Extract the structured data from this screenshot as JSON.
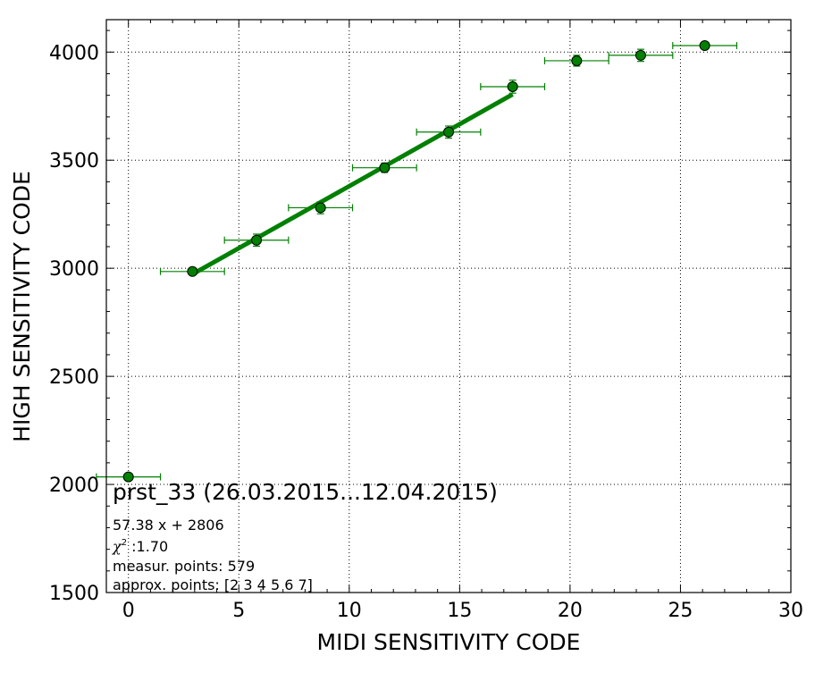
{
  "chart_data": {
    "type": "scatter",
    "xlabel": "MIDI SENSITIVITY CODE",
    "ylabel": "HIGH SENSITIVITY CODE",
    "xlim": [
      -1,
      30
    ],
    "ylim": [
      1500,
      4150
    ],
    "xticks": [
      0,
      5,
      10,
      15,
      20,
      25,
      30
    ],
    "yticks": [
      1500,
      2000,
      2500,
      3000,
      3500,
      4000
    ],
    "grid": true,
    "color": "#008000",
    "points": [
      {
        "x": 0.0,
        "y": 2035,
        "xerr": 1.45,
        "yerr": 0
      },
      {
        "x": 2.9,
        "y": 2985,
        "xerr": 1.45,
        "yerr": 12
      },
      {
        "x": 5.8,
        "y": 3130,
        "xerr": 1.45,
        "yerr": 28
      },
      {
        "x": 8.7,
        "y": 3280,
        "xerr": 1.45,
        "yerr": 28
      },
      {
        "x": 11.6,
        "y": 3465,
        "xerr": 1.45,
        "yerr": 22
      },
      {
        "x": 14.5,
        "y": 3630,
        "xerr": 1.45,
        "yerr": 28
      },
      {
        "x": 17.4,
        "y": 3840,
        "xerr": 1.45,
        "yerr": 30
      },
      {
        "x": 20.3,
        "y": 3960,
        "xerr": 1.45,
        "yerr": 25
      },
      {
        "x": 23.2,
        "y": 3985,
        "xerr": 1.45,
        "yerr": 28
      },
      {
        "x": 26.1,
        "y": 4030,
        "xerr": 1.45,
        "yerr": 12
      }
    ],
    "fit": {
      "slope": 57.38,
      "intercept": 2806,
      "x_range": [
        2.9,
        17.4
      ]
    },
    "annotation": {
      "title": "prst_33 (26.03.2015...12.04.2015)",
      "equation": "57.38 x + 2806",
      "chi_symbol": "χ",
      "chi_exp": "2",
      "chi_value": " :1.70",
      "measur_points": "measur. points: 579",
      "approx_points": "approx. points: [2 3 4 5 6 7]"
    }
  }
}
